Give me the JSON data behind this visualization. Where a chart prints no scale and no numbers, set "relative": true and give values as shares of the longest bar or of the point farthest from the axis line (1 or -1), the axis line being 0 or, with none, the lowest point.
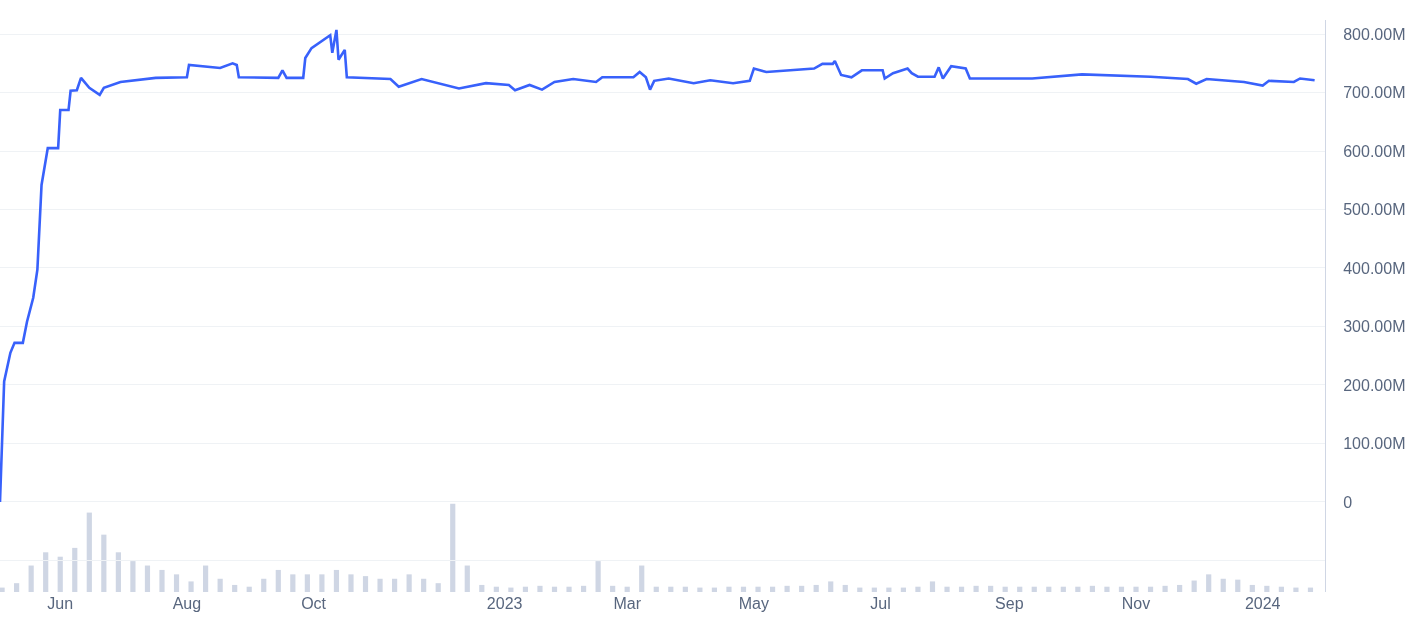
{
  "chart_data": [
    {
      "type": "line",
      "color": "#3861fb",
      "grid": "y",
      "tick_labels": "y",
      "xlim": [
        "2022-05-03",
        "2024-01-31"
      ],
      "ylim": [
        -154,
        824
      ],
      "yticks": [
        {
          "value": -100,
          "label": null
        },
        0,
        {
          "value": 100,
          "label": "100.00M"
        },
        {
          "value": 200,
          "label": "200.00M"
        },
        {
          "value": 300,
          "label": "300.00M"
        },
        {
          "value": 400,
          "label": "400.00M"
        },
        {
          "value": 500,
          "label": "500.00M"
        },
        {
          "value": 600,
          "label": "600.00M"
        },
        {
          "value": 700,
          "label": "700.00M"
        },
        {
          "value": 800,
          "label": "800.00M"
        }
      ],
      "x": [
        "2022-05-03",
        "2022-05-05",
        "2022-05-08",
        "2022-05-10",
        "2022-05-14",
        "2022-05-16",
        "2022-05-19",
        "2022-05-21",
        "2022-05-23",
        "2022-05-26",
        "2022-05-31",
        "2022-06-01",
        "2022-06-05",
        "2022-06-06",
        "2022-06-09",
        "2022-06-11",
        "2022-06-15",
        "2022-06-20",
        "2022-06-22",
        "2022-06-30",
        "2022-07-17",
        "2022-08-01",
        "2022-08-02",
        "2022-08-17",
        "2022-08-23",
        "2022-08-25",
        "2022-08-26",
        "2022-09-14",
        "2022-09-16",
        "2022-09-18",
        "2022-09-26",
        "2022-09-27",
        "2022-09-30",
        "2022-10-09",
        "2022-10-10",
        "2022-10-12",
        "2022-10-13",
        "2022-10-16",
        "2022-10-17",
        "2022-11-07",
        "2022-11-11",
        "2022-11-22",
        "2022-12-10",
        "2022-12-23",
        "2023-01-03",
        "2023-01-06",
        "2023-01-13",
        "2023-01-19",
        "2023-01-25",
        "2023-02-03",
        "2023-02-14",
        "2023-02-17",
        "2023-03-04",
        "2023-03-07",
        "2023-03-10",
        "2023-03-12",
        "2023-03-14",
        "2023-03-21",
        "2023-04-02",
        "2023-04-10",
        "2023-04-21",
        "2023-04-29",
        "2023-05-01",
        "2023-05-07",
        "2023-05-30",
        "2023-06-03",
        "2023-06-08",
        "2023-06-09",
        "2023-06-12",
        "2023-06-17",
        "2023-06-22",
        "2023-07-02",
        "2023-07-03",
        "2023-07-07",
        "2023-07-14",
        "2023-07-16",
        "2023-07-19",
        "2023-07-27",
        "2023-07-29",
        "2023-07-31",
        "2023-08-04",
        "2023-08-11",
        "2023-08-13",
        "2023-09-12",
        "2023-10-06",
        "2023-11-08",
        "2023-11-26",
        "2023-11-30",
        "2023-12-05",
        "2023-12-23",
        "2024-01-01",
        "2024-01-04",
        "2024-01-16",
        "2024-01-19",
        "2024-01-26"
      ],
      "values": [
        0,
        206,
        255,
        272,
        272,
        308,
        349,
        397,
        542,
        605,
        605,
        670,
        670,
        703,
        704,
        725,
        708,
        696,
        708,
        718,
        725,
        726,
        747,
        742,
        750,
        747,
        726,
        725,
        738,
        725,
        725,
        759,
        776,
        798,
        768,
        807,
        756,
        773,
        726,
        723,
        710,
        723,
        707,
        716,
        713,
        704,
        713,
        705,
        718,
        723,
        718,
        726,
        726,
        735,
        726,
        705,
        720,
        724,
        716,
        721,
        716,
        720,
        741,
        735,
        741,
        749,
        749,
        754,
        730,
        726,
        738,
        738,
        724,
        733,
        741,
        733,
        727,
        727,
        743,
        724,
        745,
        741,
        724,
        724,
        731,
        727,
        723,
        715,
        723,
        718,
        712,
        720,
        718,
        724,
        721
      ]
    },
    {
      "type": "bar",
      "relative": true,
      "color": "#cfd6e4",
      "tick_labels": "x",
      "xlim": [
        "2022-05-03",
        "2024-01-31"
      ],
      "xticks": [
        {
          "value": "2022-06-01",
          "label": "Jun"
        },
        {
          "value": "2022-08-01",
          "label": "Aug"
        },
        {
          "value": "2022-10-01",
          "label": "Oct"
        },
        {
          "value": "2023-01-01",
          "label": "2023"
        },
        {
          "value": "2023-03-01",
          "label": "Mar"
        },
        {
          "value": "2023-05-01",
          "label": "May"
        },
        {
          "value": "2023-07-01",
          "label": "Jul"
        },
        {
          "value": "2023-09-01",
          "label": "Sep"
        },
        {
          "value": "2023-11-01",
          "label": "Nov"
        },
        {
          "value": "2024-01-01",
          "label": "2024"
        }
      ],
      "x": [
        "2022-05-04",
        "2022-05-11",
        "2022-05-18",
        "2022-05-25",
        "2022-06-01",
        "2022-06-08",
        "2022-06-15",
        "2022-06-22",
        "2022-06-29",
        "2022-07-06",
        "2022-07-13",
        "2022-07-20",
        "2022-07-27",
        "2022-08-03",
        "2022-08-10",
        "2022-08-17",
        "2022-08-24",
        "2022-08-31",
        "2022-09-07",
        "2022-09-14",
        "2022-09-21",
        "2022-09-28",
        "2022-10-05",
        "2022-10-12",
        "2022-10-19",
        "2022-10-26",
        "2022-11-02",
        "2022-11-09",
        "2022-11-16",
        "2022-11-23",
        "2022-11-30",
        "2022-12-07",
        "2022-12-14",
        "2022-12-21",
        "2022-12-28",
        "2023-01-04",
        "2023-01-11",
        "2023-01-18",
        "2023-01-25",
        "2023-02-01",
        "2023-02-08",
        "2023-02-15",
        "2023-02-22",
        "2023-03-01",
        "2023-03-08",
        "2023-03-15",
        "2023-03-22",
        "2023-03-29",
        "2023-04-05",
        "2023-04-12",
        "2023-04-19",
        "2023-04-26",
        "2023-05-03",
        "2023-05-10",
        "2023-05-17",
        "2023-05-24",
        "2023-05-31",
        "2023-06-07",
        "2023-06-14",
        "2023-06-21",
        "2023-06-28",
        "2023-07-05",
        "2023-07-12",
        "2023-07-19",
        "2023-07-26",
        "2023-08-02",
        "2023-08-09",
        "2023-08-16",
        "2023-08-23",
        "2023-08-30",
        "2023-09-06",
        "2023-09-13",
        "2023-09-20",
        "2023-09-27",
        "2023-10-04",
        "2023-10-11",
        "2023-10-18",
        "2023-10-25",
        "2023-11-01",
        "2023-11-08",
        "2023-11-15",
        "2023-11-22",
        "2023-11-29",
        "2023-12-06",
        "2023-12-13",
        "2023-12-20",
        "2023-12-27",
        "2024-01-03",
        "2024-01-10",
        "2024-01-17",
        "2024-01-24"
      ],
      "values": [
        0.05,
        0.1,
        0.3,
        0.45,
        0.4,
        0.5,
        0.9,
        0.65,
        0.45,
        0.35,
        0.3,
        0.25,
        0.2,
        0.12,
        0.3,
        0.15,
        0.08,
        0.06,
        0.15,
        0.25,
        0.2,
        0.2,
        0.2,
        0.25,
        0.2,
        0.18,
        0.15,
        0.15,
        0.2,
        0.15,
        0.1,
        1,
        0.3,
        0.08,
        0.06,
        0.05,
        0.06,
        0.07,
        0.06,
        0.06,
        0.07,
        0.35,
        0.07,
        0.06,
        0.3,
        0.06,
        0.06,
        0.06,
        0.05,
        0.05,
        0.06,
        0.06,
        0.06,
        0.06,
        0.07,
        0.07,
        0.08,
        0.12,
        0.08,
        0.05,
        0.05,
        0.05,
        0.05,
        0.06,
        0.12,
        0.06,
        0.06,
        0.07,
        0.07,
        0.06,
        0.06,
        0.06,
        0.06,
        0.06,
        0.06,
        0.07,
        0.06,
        0.06,
        0.06,
        0.06,
        0.07,
        0.08,
        0.13,
        0.2,
        0.15,
        0.14,
        0.08,
        0.07,
        0.06,
        0.05,
        0.05
      ]
    }
  ]
}
